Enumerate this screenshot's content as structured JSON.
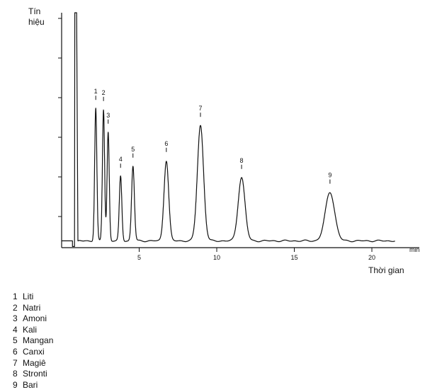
{
  "chart_data": {
    "type": "line",
    "ylabel": [
      "Tín",
      "hiệu"
    ],
    "xlabel": "Thời gian",
    "x_unit": "min",
    "xlim": [
      0,
      21.5
    ],
    "x_ticks": [
      5,
      10,
      15,
      20
    ],
    "y_ticks": 6,
    "grid": false,
    "baseline": 0.3,
    "solvent_front": {
      "x": 0.85,
      "height": 10
    },
    "peaks": [
      {
        "label": "1",
        "name": "Liti",
        "x": 2.2,
        "height": 5.85,
        "width": 0.07
      },
      {
        "label": "2",
        "name": "Natri",
        "x": 2.7,
        "height": 5.8,
        "width": 0.07
      },
      {
        "label": "3",
        "name": "Amoni",
        "x": 3.0,
        "height": 4.8,
        "width": 0.07
      },
      {
        "label": "4",
        "name": "Kali",
        "x": 3.8,
        "height": 2.85,
        "width": 0.08
      },
      {
        "label": "5",
        "name": "Mangan",
        "x": 4.6,
        "height": 3.3,
        "width": 0.09
      },
      {
        "label": "6",
        "name": "Canxi",
        "x": 6.75,
        "height": 3.55,
        "width": 0.15
      },
      {
        "label": "7",
        "name": "Magiê",
        "x": 8.95,
        "height": 5.1,
        "width": 0.2
      },
      {
        "label": "8",
        "name": "Stronti",
        "x": 11.6,
        "height": 2.8,
        "width": 0.22
      },
      {
        "label": "9",
        "name": "Bari",
        "x": 17.3,
        "height": 2.15,
        "width": 0.3
      }
    ]
  }
}
